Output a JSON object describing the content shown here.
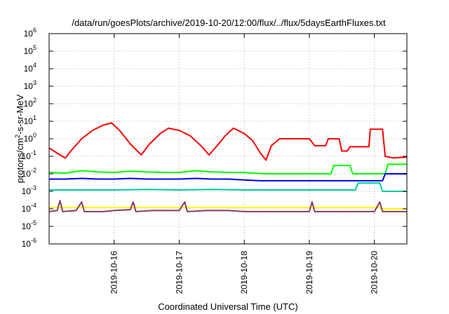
{
  "chart_data": {
    "type": "line",
    "title": "/data/run/goesPlots/archive/2019-10-20/12:00/flux/../flux/5daysEarthFluxes.txt",
    "xlabel": "Coordinated Universal Time (UTC)",
    "ylabel": {
      "base": "protons/cm",
      "sup": "2",
      "rest": "-s-sr-MeV"
    },
    "yscale": "log",
    "ylim_exp": [
      -6,
      6
    ],
    "y_ticks": [
      {
        "base": "10",
        "exp": "-6",
        "value": 1e-06
      },
      {
        "base": "10",
        "exp": "-5",
        "value": 1e-05
      },
      {
        "base": "10",
        "exp": "-4",
        "value": 0.0001
      },
      {
        "base": "10",
        "exp": "-3",
        "value": 0.001
      },
      {
        "base": "10",
        "exp": "-2",
        "value": 0.01
      },
      {
        "base": "10",
        "exp": "-1",
        "value": 0.1
      },
      {
        "base": "10",
        "exp": "0",
        "value": 1
      },
      {
        "base": "10",
        "exp": "1",
        "value": 10
      },
      {
        "base": "10",
        "exp": "2",
        "value": 100
      },
      {
        "base": "10",
        "exp": "3",
        "value": 1000
      },
      {
        "base": "10",
        "exp": "4",
        "value": 10000
      },
      {
        "base": "10",
        "exp": "5",
        "value": 100000
      },
      {
        "base": "10",
        "exp": "6",
        "value": 1000000
      }
    ],
    "xlim": [
      "2019-10-15T00:00",
      "2019-10-20T12:00"
    ],
    "x_ticks": [
      {
        "label": "2019-10-16",
        "value": "2019-10-16T00:00"
      },
      {
        "label": "2019-10-17",
        "value": "2019-10-17T00:00"
      },
      {
        "label": "2019-10-18",
        "value": "2019-10-18T00:00"
      },
      {
        "label": "2019-10-19",
        "value": "2019-10-19T00:00"
      },
      {
        "label": "2019-10-20",
        "value": "2019-10-20T00:00"
      }
    ],
    "grid": true,
    "series": [
      {
        "color": "#ff0000",
        "points": [
          [
            "2019-10-15T00:00",
            0.3
          ],
          [
            "2019-10-15T04:00",
            0.12
          ],
          [
            "2019-10-15T06:00",
            0.08
          ],
          [
            "2019-10-15T08:00",
            0.2
          ],
          [
            "2019-10-15T12:00",
            1.0
          ],
          [
            "2019-10-15T16:00",
            3.0
          ],
          [
            "2019-10-15T20:00",
            6.0
          ],
          [
            "2019-10-15T23:00",
            8.0
          ],
          [
            "2019-10-16T02:00",
            3.0
          ],
          [
            "2019-10-16T06:00",
            0.5
          ],
          [
            "2019-10-16T10:00",
            0.12
          ],
          [
            "2019-10-16T13:00",
            0.5
          ],
          [
            "2019-10-16T17:00",
            2.0
          ],
          [
            "2019-10-16T20:00",
            4.0
          ],
          [
            "2019-10-17T00:00",
            3.0
          ],
          [
            "2019-10-17T04:00",
            1.5
          ],
          [
            "2019-10-17T08:00",
            0.4
          ],
          [
            "2019-10-17T11:00",
            0.12
          ],
          [
            "2019-10-17T14:00",
            0.4
          ],
          [
            "2019-10-17T17:00",
            1.5
          ],
          [
            "2019-10-17T20:00",
            4.0
          ],
          [
            "2019-10-18T00:00",
            2.0
          ],
          [
            "2019-10-18T03:00",
            0.8
          ],
          [
            "2019-10-18T06:00",
            0.15
          ],
          [
            "2019-10-18T08:00",
            0.06
          ],
          [
            "2019-10-18T10:00",
            0.4
          ],
          [
            "2019-10-18T13:00",
            1.0
          ],
          [
            "2019-10-18T20:00",
            1.0
          ],
          [
            "2019-10-19T00:00",
            1.0
          ],
          [
            "2019-10-19T02:00",
            0.4
          ],
          [
            "2019-10-19T06:00",
            0.4
          ],
          [
            "2019-10-19T07:00",
            1.0
          ],
          [
            "2019-10-19T11:00",
            1.0
          ],
          [
            "2019-10-19T12:00",
            0.2
          ],
          [
            "2019-10-19T14:00",
            0.2
          ],
          [
            "2019-10-19T15:00",
            0.35
          ],
          [
            "2019-10-19T22:00",
            0.35
          ],
          [
            "2019-10-19T22:30",
            3.5
          ],
          [
            "2019-10-20T03:00",
            3.5
          ],
          [
            "2019-10-20T04:00",
            0.1
          ],
          [
            "2019-10-20T07:00",
            0.08
          ],
          [
            "2019-10-20T12:00",
            0.09
          ]
        ]
      },
      {
        "color": "#00ff00",
        "points": [
          [
            "2019-10-15T00:00",
            0.012
          ],
          [
            "2019-10-15T06:00",
            0.011
          ],
          [
            "2019-10-15T12:00",
            0.015
          ],
          [
            "2019-10-15T18:00",
            0.013
          ],
          [
            "2019-10-16T00:00",
            0.012
          ],
          [
            "2019-10-16T06:00",
            0.014
          ],
          [
            "2019-10-16T12:00",
            0.013
          ],
          [
            "2019-10-16T18:00",
            0.012
          ],
          [
            "2019-10-17T00:00",
            0.012
          ],
          [
            "2019-10-17T06:00",
            0.015
          ],
          [
            "2019-10-17T12:00",
            0.013
          ],
          [
            "2019-10-17T18:00",
            0.012
          ],
          [
            "2019-10-18T00:00",
            0.012
          ],
          [
            "2019-10-18T03:00",
            0.011
          ],
          [
            "2019-10-18T08:00",
            0.01
          ],
          [
            "2019-10-18T20:00",
            0.01
          ],
          [
            "2019-10-19T08:00",
            0.01
          ],
          [
            "2019-10-19T09:00",
            0.03
          ],
          [
            "2019-10-19T15:00",
            0.03
          ],
          [
            "2019-10-19T16:00",
            0.01
          ],
          [
            "2019-10-20T00:00",
            0.01
          ],
          [
            "2019-10-20T04:00",
            0.01
          ],
          [
            "2019-10-20T05:00",
            0.035
          ],
          [
            "2019-10-20T12:00",
            0.035
          ]
        ]
      },
      {
        "color": "#0000ff",
        "points": [
          [
            "2019-10-15T00:00",
            0.005
          ],
          [
            "2019-10-15T06:00",
            0.005
          ],
          [
            "2019-10-15T12:00",
            0.0055
          ],
          [
            "2019-10-15T18:00",
            0.005
          ],
          [
            "2019-10-16T00:00",
            0.005
          ],
          [
            "2019-10-16T06:00",
            0.0055
          ],
          [
            "2019-10-16T12:00",
            0.005
          ],
          [
            "2019-10-16T18:00",
            0.005
          ],
          [
            "2019-10-17T00:00",
            0.005
          ],
          [
            "2019-10-17T06:00",
            0.0055
          ],
          [
            "2019-10-17T12:00",
            0.005
          ],
          [
            "2019-10-17T18:00",
            0.005
          ],
          [
            "2019-10-18T00:00",
            0.0045
          ],
          [
            "2019-10-18T06:00",
            0.004
          ],
          [
            "2019-10-18T12:00",
            0.004
          ],
          [
            "2019-10-19T00:00",
            0.004
          ],
          [
            "2019-10-19T12:00",
            0.004
          ],
          [
            "2019-10-20T00:00",
            0.004
          ],
          [
            "2019-10-20T03:00",
            0.004
          ],
          [
            "2019-10-20T04:00",
            0.01
          ],
          [
            "2019-10-20T12:00",
            0.01
          ]
        ]
      },
      {
        "color": "#00cc99",
        "points": [
          [
            "2019-10-15T00:00",
            0.0012
          ],
          [
            "2019-10-15T12:00",
            0.0012
          ],
          [
            "2019-10-16T00:00",
            0.0012
          ],
          [
            "2019-10-16T12:00",
            0.0013
          ],
          [
            "2019-10-17T00:00",
            0.0012
          ],
          [
            "2019-10-17T12:00",
            0.0013
          ],
          [
            "2019-10-18T00:00",
            0.0012
          ],
          [
            "2019-10-18T12:00",
            0.0012
          ],
          [
            "2019-10-19T00:00",
            0.0012
          ],
          [
            "2019-10-19T12:00",
            0.0012
          ],
          [
            "2019-10-19T17:00",
            0.0012
          ],
          [
            "2019-10-19T18:00",
            0.003
          ],
          [
            "2019-10-20T00:00",
            0.003
          ],
          [
            "2019-10-20T02:00",
            0.003
          ],
          [
            "2019-10-20T03:00",
            0.001
          ],
          [
            "2019-10-20T12:00",
            0.001
          ]
        ]
      },
      {
        "color": "#ffff00",
        "points": [
          [
            "2019-10-15T00:00",
            0.00012
          ],
          [
            "2019-10-15T12:00",
            0.00012
          ],
          [
            "2019-10-16T00:00",
            0.00012
          ],
          [
            "2019-10-16T12:00",
            0.00012
          ],
          [
            "2019-10-17T00:00",
            0.00012
          ],
          [
            "2019-10-17T12:00",
            0.00012
          ],
          [
            "2019-10-18T00:00",
            0.00012
          ],
          [
            "2019-10-18T12:00",
            0.00012
          ],
          [
            "2019-10-19T00:00",
            0.00012
          ],
          [
            "2019-10-19T12:00",
            0.00012
          ],
          [
            "2019-10-20T00:00",
            0.00012
          ],
          [
            "2019-10-20T02:00",
            0.00012
          ],
          [
            "2019-10-20T03:00",
            0.0001
          ],
          [
            "2019-10-20T12:00",
            0.0001
          ]
        ]
      },
      {
        "color": "#8b3a62",
        "points": [
          [
            "2019-10-15T00:00",
            7e-05
          ],
          [
            "2019-10-15T03:00",
            8e-05
          ],
          [
            "2019-10-15T04:00",
            0.0003
          ],
          [
            "2019-10-15T05:00",
            7e-05
          ],
          [
            "2019-10-15T10:00",
            8e-05
          ],
          [
            "2019-10-15T12:00",
            0.00025
          ],
          [
            "2019-10-15T13:00",
            7e-05
          ],
          [
            "2019-10-15T20:00",
            7e-05
          ],
          [
            "2019-10-16T00:00",
            8e-05
          ],
          [
            "2019-10-16T06:00",
            9e-05
          ],
          [
            "2019-10-16T07:00",
            0.00025
          ],
          [
            "2019-10-16T08:00",
            7e-05
          ],
          [
            "2019-10-16T14:00",
            8e-05
          ],
          [
            "2019-10-16T18:00",
            8e-05
          ],
          [
            "2019-10-17T00:00",
            8e-05
          ],
          [
            "2019-10-17T02:00",
            0.00025
          ],
          [
            "2019-10-17T03:00",
            7e-05
          ],
          [
            "2019-10-17T10:00",
            8e-05
          ],
          [
            "2019-10-17T12:00",
            8e-05
          ],
          [
            "2019-10-17T18:00",
            8e-05
          ],
          [
            "2019-10-18T00:00",
            7e-05
          ],
          [
            "2019-10-18T06:00",
            7e-05
          ],
          [
            "2019-10-18T12:00",
            7e-05
          ],
          [
            "2019-10-19T00:00",
            7e-05
          ],
          [
            "2019-10-19T01:00",
            0.00025
          ],
          [
            "2019-10-19T02:00",
            7e-05
          ],
          [
            "2019-10-19T12:00",
            7e-05
          ],
          [
            "2019-10-20T00:00",
            7e-05
          ],
          [
            "2019-10-20T02:00",
            0.00025
          ],
          [
            "2019-10-20T03:00",
            7e-05
          ],
          [
            "2019-10-20T12:00",
            7e-05
          ]
        ]
      }
    ]
  }
}
